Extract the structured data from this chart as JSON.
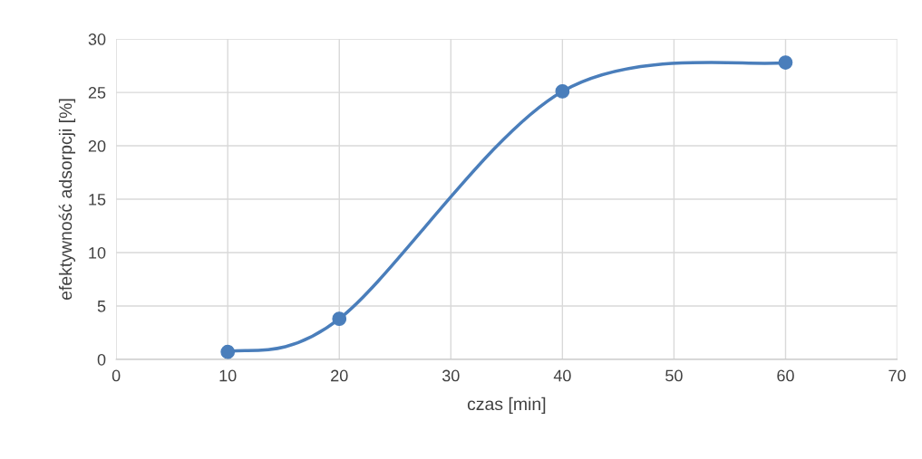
{
  "chart_data": {
    "type": "line",
    "xlabel": "czas [min]",
    "ylabel": "efektywność adsorpcji [%]",
    "x": [
      10,
      20,
      40,
      60
    ],
    "series": [
      {
        "color": "#4a7ebb",
        "values": [
          0.7,
          3.8,
          25.1,
          27.8
        ]
      }
    ],
    "xlim": [
      0,
      70
    ],
    "xticks": [
      0,
      10,
      20,
      30,
      40,
      50,
      60,
      70
    ],
    "ylim": [
      0,
      30
    ],
    "yticks": [
      0,
      5,
      10,
      15,
      20,
      25,
      30
    ],
    "grid": true,
    "marker": "circle",
    "line_style": "solid",
    "legend": false
  }
}
